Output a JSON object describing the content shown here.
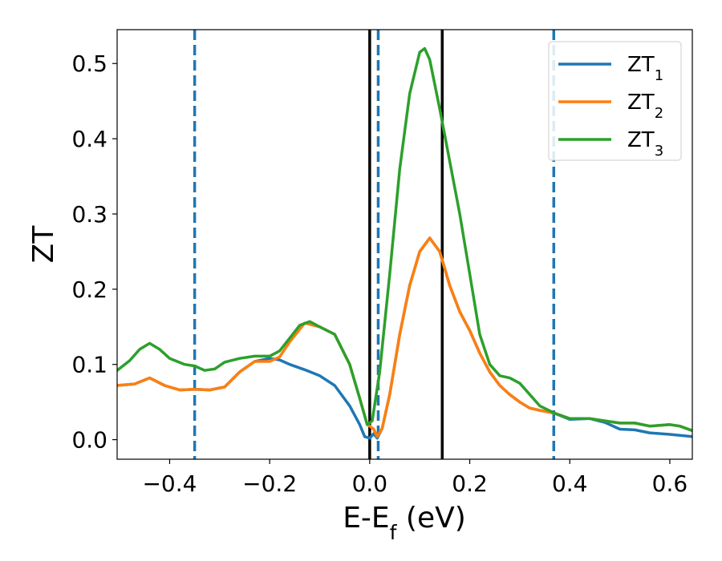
{
  "chart_data": {
    "type": "line",
    "xlabel": {
      "main": "E-E",
      "sub": "f",
      "suffix": " (eV)"
    },
    "ylabel": "ZT",
    "xlim": [
      -0.505,
      0.645
    ],
    "ylim": [
      -0.026,
      0.545
    ],
    "xticks": [
      -0.4,
      -0.2,
      0.0,
      0.2,
      0.4,
      0.6
    ],
    "xtick_labels": [
      "−0.4",
      "−0.2",
      "0.0",
      "0.2",
      "0.4",
      "0.6"
    ],
    "yticks": [
      0.0,
      0.1,
      0.2,
      0.3,
      0.4,
      0.5
    ],
    "ytick_labels": [
      "0.0",
      "0.1",
      "0.2",
      "0.3",
      "0.4",
      "0.5"
    ],
    "grid": false,
    "legend_position": "top-right",
    "series": [
      {
        "name": "ZT",
        "sub": "1",
        "color": "#1f77b4",
        "points": [
          [
            -0.505,
            0.072
          ],
          [
            -0.47,
            0.074
          ],
          [
            -0.44,
            0.082
          ],
          [
            -0.41,
            0.072
          ],
          [
            -0.38,
            0.066
          ],
          [
            -0.35,
            0.067
          ],
          [
            -0.32,
            0.066
          ],
          [
            -0.29,
            0.07
          ],
          [
            -0.26,
            0.09
          ],
          [
            -0.23,
            0.104
          ],
          [
            -0.2,
            0.108
          ],
          [
            -0.18,
            0.106
          ],
          [
            -0.16,
            0.1
          ],
          [
            -0.13,
            0.093
          ],
          [
            -0.1,
            0.085
          ],
          [
            -0.07,
            0.072
          ],
          [
            -0.04,
            0.045
          ],
          [
            -0.02,
            0.02
          ],
          [
            -0.01,
            0.004
          ],
          [
            0.0,
            0.002
          ],
          [
            0.008,
            0.008
          ],
          [
            0.015,
            0.002
          ],
          [
            0.025,
            0.015
          ],
          [
            0.04,
            0.06
          ],
          [
            0.06,
            0.14
          ],
          [
            0.08,
            0.205
          ],
          [
            0.1,
            0.25
          ],
          [
            0.12,
            0.268
          ],
          [
            0.14,
            0.25
          ],
          [
            0.16,
            0.205
          ],
          [
            0.18,
            0.17
          ],
          [
            0.2,
            0.145
          ],
          [
            0.22,
            0.115
          ],
          [
            0.24,
            0.09
          ],
          [
            0.26,
            0.072
          ],
          [
            0.28,
            0.06
          ],
          [
            0.3,
            0.05
          ],
          [
            0.32,
            0.042
          ],
          [
            0.34,
            0.039
          ],
          [
            0.37,
            0.035
          ],
          [
            0.4,
            0.027
          ],
          [
            0.44,
            0.028
          ],
          [
            0.47,
            0.023
          ],
          [
            0.5,
            0.014
          ],
          [
            0.53,
            0.013
          ],
          [
            0.56,
            0.009
          ],
          [
            0.6,
            0.007
          ],
          [
            0.645,
            0.004
          ]
        ]
      },
      {
        "name": "ZT",
        "sub": "2",
        "color": "#ff7f0e",
        "points": [
          [
            -0.505,
            0.072
          ],
          [
            -0.47,
            0.074
          ],
          [
            -0.44,
            0.082
          ],
          [
            -0.41,
            0.072
          ],
          [
            -0.38,
            0.066
          ],
          [
            -0.35,
            0.067
          ],
          [
            -0.32,
            0.066
          ],
          [
            -0.29,
            0.07
          ],
          [
            -0.26,
            0.09
          ],
          [
            -0.23,
            0.104
          ],
          [
            -0.2,
            0.104
          ],
          [
            -0.18,
            0.11
          ],
          [
            -0.16,
            0.13
          ],
          [
            -0.13,
            0.155
          ],
          [
            -0.1,
            0.15
          ],
          [
            -0.07,
            0.14
          ],
          [
            -0.04,
            0.1
          ],
          [
            -0.02,
            0.055
          ],
          [
            -0.005,
            0.02
          ],
          [
            0.0,
            0.018
          ],
          [
            0.008,
            0.014
          ],
          [
            0.015,
            0.004
          ],
          [
            0.025,
            0.015
          ],
          [
            0.04,
            0.06
          ],
          [
            0.06,
            0.14
          ],
          [
            0.08,
            0.205
          ],
          [
            0.1,
            0.25
          ],
          [
            0.12,
            0.268
          ],
          [
            0.14,
            0.25
          ],
          [
            0.16,
            0.205
          ],
          [
            0.18,
            0.17
          ],
          [
            0.2,
            0.145
          ],
          [
            0.22,
            0.115
          ],
          [
            0.24,
            0.09
          ],
          [
            0.26,
            0.072
          ],
          [
            0.28,
            0.06
          ],
          [
            0.3,
            0.05
          ],
          [
            0.32,
            0.042
          ],
          [
            0.34,
            0.039
          ],
          [
            0.37,
            0.035
          ],
          [
            0.4,
            0.028
          ],
          [
            0.44,
            0.028
          ],
          [
            0.47,
            0.025
          ],
          [
            0.5,
            0.022
          ],
          [
            0.53,
            0.022
          ],
          [
            0.56,
            0.018
          ],
          [
            0.6,
            0.02
          ],
          [
            0.62,
            0.018
          ],
          [
            0.645,
            0.012
          ]
        ]
      },
      {
        "name": "ZT",
        "sub": "3",
        "color": "#2ca02c",
        "points": [
          [
            -0.505,
            0.092
          ],
          [
            -0.48,
            0.105
          ],
          [
            -0.46,
            0.12
          ],
          [
            -0.44,
            0.128
          ],
          [
            -0.42,
            0.12
          ],
          [
            -0.4,
            0.108
          ],
          [
            -0.37,
            0.1
          ],
          [
            -0.35,
            0.098
          ],
          [
            -0.33,
            0.092
          ],
          [
            -0.31,
            0.094
          ],
          [
            -0.29,
            0.103
          ],
          [
            -0.26,
            0.108
          ],
          [
            -0.23,
            0.111
          ],
          [
            -0.2,
            0.111
          ],
          [
            -0.18,
            0.118
          ],
          [
            -0.16,
            0.135
          ],
          [
            -0.14,
            0.152
          ],
          [
            -0.12,
            0.157
          ],
          [
            -0.1,
            0.15
          ],
          [
            -0.07,
            0.14
          ],
          [
            -0.04,
            0.1
          ],
          [
            -0.02,
            0.055
          ],
          [
            -0.005,
            0.02
          ],
          [
            0.005,
            0.025
          ],
          [
            0.02,
            0.09
          ],
          [
            0.04,
            0.22
          ],
          [
            0.06,
            0.36
          ],
          [
            0.08,
            0.46
          ],
          [
            0.1,
            0.515
          ],
          [
            0.11,
            0.52
          ],
          [
            0.12,
            0.505
          ],
          [
            0.14,
            0.44
          ],
          [
            0.16,
            0.37
          ],
          [
            0.18,
            0.3
          ],
          [
            0.2,
            0.22
          ],
          [
            0.22,
            0.14
          ],
          [
            0.24,
            0.1
          ],
          [
            0.26,
            0.085
          ],
          [
            0.28,
            0.082
          ],
          [
            0.3,
            0.075
          ],
          [
            0.32,
            0.06
          ],
          [
            0.34,
            0.045
          ],
          [
            0.37,
            0.035
          ],
          [
            0.4,
            0.028
          ],
          [
            0.44,
            0.028
          ],
          [
            0.47,
            0.025
          ],
          [
            0.5,
            0.022
          ],
          [
            0.53,
            0.022
          ],
          [
            0.56,
            0.018
          ],
          [
            0.6,
            0.02
          ],
          [
            0.62,
            0.018
          ],
          [
            0.645,
            0.012
          ]
        ]
      }
    ],
    "vlines": [
      {
        "x": -0.35,
        "style": "dashed",
        "color": "#1f77b4"
      },
      {
        "x": 0.017,
        "style": "dashed",
        "color": "#1f77b4"
      },
      {
        "x": 0.368,
        "style": "dashed",
        "color": "#1f77b4"
      },
      {
        "x": 0.0,
        "style": "solid",
        "color": "#000000"
      },
      {
        "x": 0.145,
        "style": "solid",
        "color": "#000000"
      }
    ]
  }
}
